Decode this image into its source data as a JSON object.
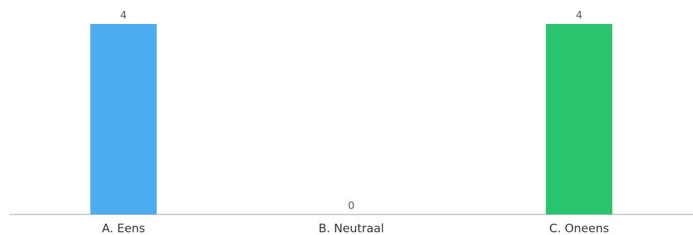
{
  "chart_data": {
    "type": "bar",
    "categories": [
      "A. Eens",
      "B. Neutraal",
      "C. Oneens"
    ],
    "values": [
      4,
      0,
      4
    ],
    "colors": [
      "#4dabf0",
      "#4dabf0",
      "#2ac46e"
    ],
    "ylim": [
      0,
      4
    ],
    "grid": false,
    "title": "",
    "xlabel": "",
    "ylabel": ""
  }
}
